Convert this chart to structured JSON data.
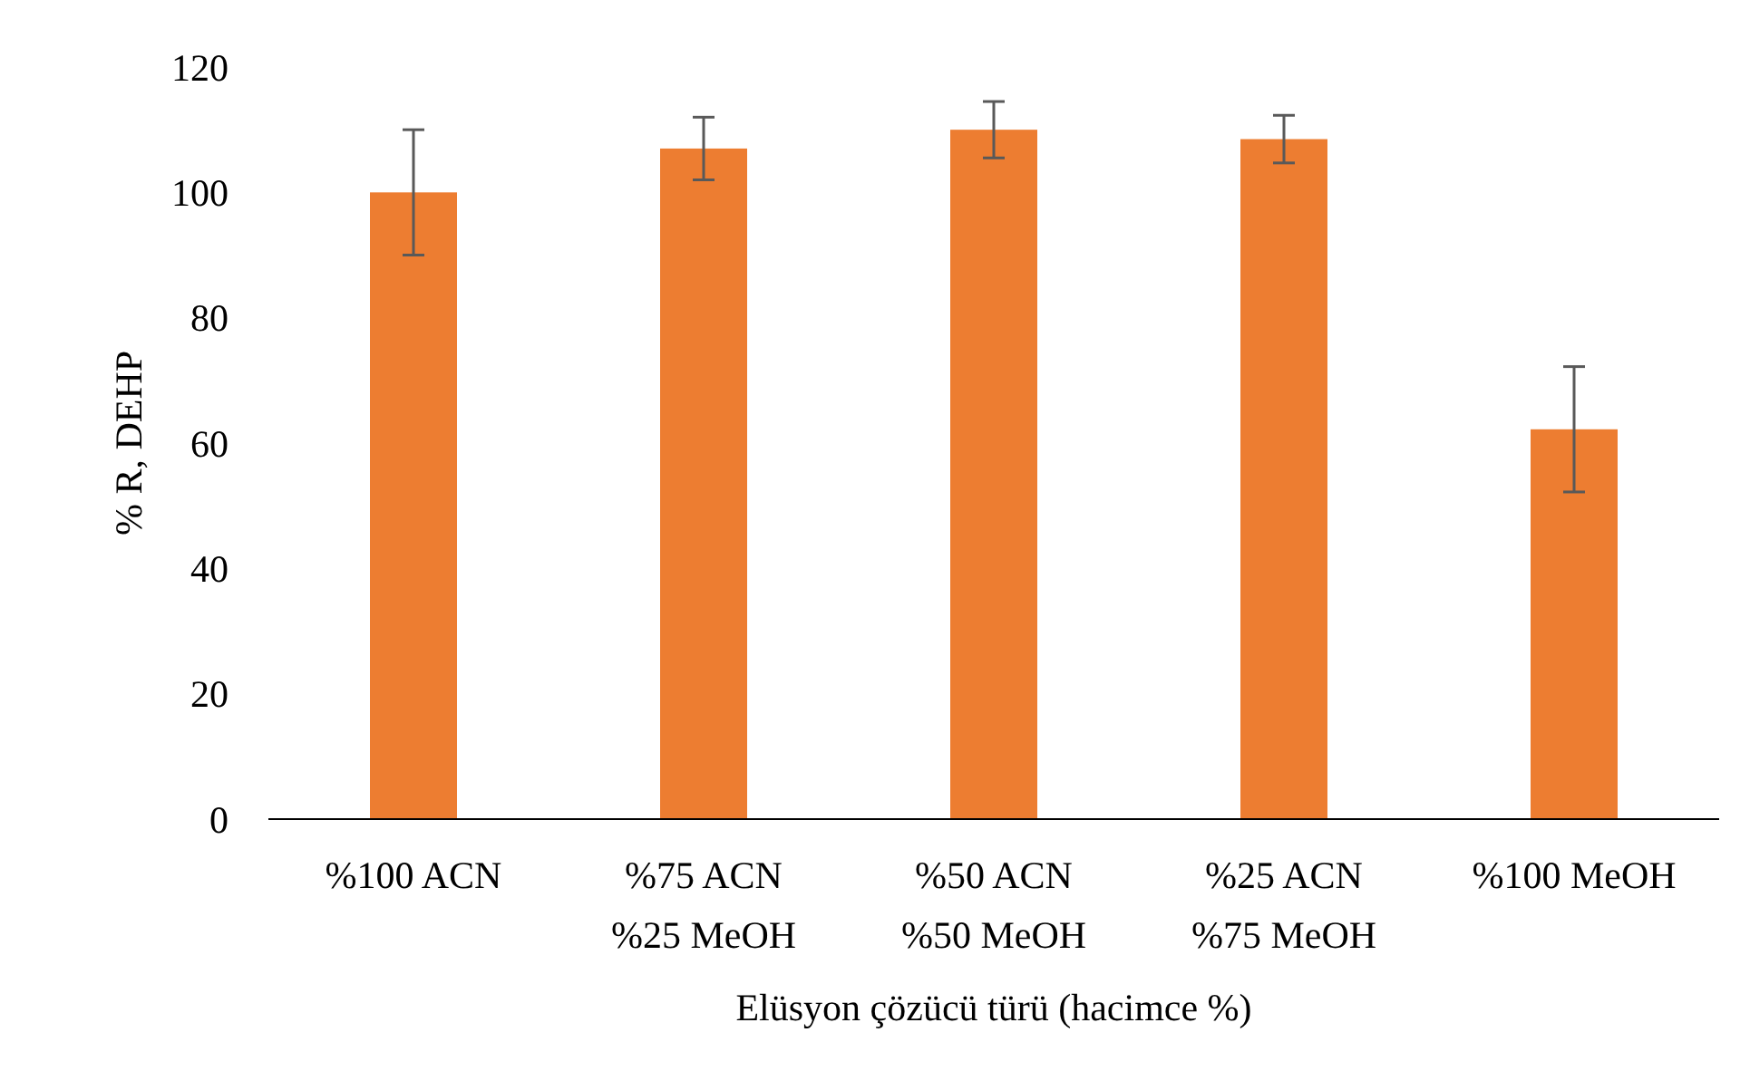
{
  "chart_data": {
    "type": "bar",
    "xlabel": "Elüsyon çözücü türü (hacimce %)",
    "ylabel": "% R, DEHP",
    "categories": [
      "%100 ACN",
      "%75 ACN\n%25 MeOH",
      "%50 ACN\n%50 MeOH",
      "%25 ACN\n%75 MeOH",
      "%100 MeOH"
    ],
    "values": [
      100,
      107,
      110,
      108.5,
      62.2
    ],
    "errors": [
      10,
      5,
      4.5,
      3.8,
      10
    ],
    "color": "#ed7d31",
    "ylim": [
      0,
      120
    ],
    "yticks": [
      0,
      20,
      40,
      60,
      80,
      100,
      120
    ],
    "grid": false
  }
}
